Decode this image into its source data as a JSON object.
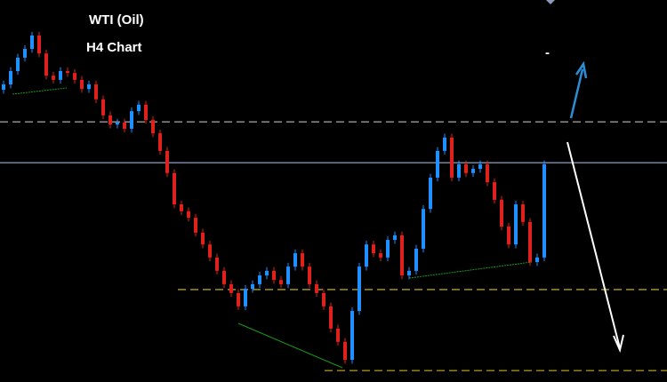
{
  "chart_data": {
    "type": "candlestick",
    "title": "WTI (Oil)",
    "subtitle": "H4 Chart",
    "annotation": "-",
    "ylim": [
      0,
      100
    ],
    "up_color": "#1e90ff",
    "down_color": "#e0201a",
    "open": [
      76.5,
      77.9,
      81.4,
      84.9,
      87.2,
      90.7,
      86.0,
      80.2,
      79.1,
      81.4,
      80.9,
      79.1,
      76.7,
      77.9,
      74.0,
      69.8,
      67.4,
      67.9,
      66.3,
      70.9,
      72.6,
      68.6,
      65.1,
      60.5,
      54.7,
      46.5,
      44.7,
      43.0,
      39.1,
      36.0,
      32.6,
      29.1,
      25.6,
      23.3,
      19.8,
      24.4,
      25.6,
      27.9,
      29.1,
      26.7,
      25.6,
      30.2,
      33.7,
      30.2,
      25.6,
      23.3,
      19.8,
      14.0,
      10.5,
      5.8,
      18.6,
      30.2,
      36.0,
      33.7,
      32.6,
      37.2,
      38.4,
      27.9,
      29.1,
      34.9,
      45.3,
      53.5,
      60.5,
      64.0,
      53.5,
      57.0,
      54.7,
      55.8,
      57.0,
      52.3,
      47.7,
      40.7,
      36.0,
      46.5,
      41.9,
      31.4,
      32.6
    ],
    "high": [
      78.9,
      82.4,
      85.9,
      88.2,
      91.7,
      91.7,
      87.0,
      81.2,
      82.4,
      82.4,
      81.9,
      80.1,
      78.9,
      78.9,
      75.0,
      70.8,
      68.9,
      68.9,
      71.9,
      73.6,
      73.6,
      69.6,
      66.1,
      61.5,
      55.7,
      47.5,
      45.7,
      44.0,
      40.1,
      37.0,
      33.6,
      30.1,
      26.6,
      24.3,
      25.4,
      26.6,
      28.9,
      30.1,
      30.1,
      27.7,
      31.2,
      34.7,
      34.7,
      31.2,
      26.6,
      24.3,
      20.8,
      15.0,
      11.5,
      19.6,
      31.2,
      37.0,
      37.0,
      34.7,
      38.2,
      39.4,
      39.4,
      30.1,
      35.9,
      46.3,
      54.5,
      61.5,
      65.0,
      65.0,
      58.0,
      58.0,
      56.8,
      58.0,
      58.0,
      53.3,
      48.7,
      41.7,
      47.5,
      47.5,
      42.9,
      33.6,
      58.0
    ],
    "low": [
      75.5,
      76.9,
      80.4,
      83.9,
      86.2,
      85.0,
      79.2,
      78.1,
      78.1,
      79.9,
      78.1,
      75.7,
      75.7,
      73.0,
      68.8,
      66.4,
      66.4,
      65.3,
      65.3,
      69.9,
      67.6,
      64.1,
      59.5,
      53.7,
      45.5,
      43.7,
      42.0,
      38.1,
      35.0,
      31.6,
      28.1,
      24.6,
      22.3,
      18.8,
      18.8,
      23.4,
      24.6,
      26.9,
      25.7,
      24.6,
      24.6,
      29.2,
      29.2,
      24.6,
      22.3,
      18.8,
      13.0,
      9.5,
      4.8,
      4.8,
      17.6,
      29.2,
      32.7,
      31.6,
      31.6,
      36.2,
      26.9,
      26.9,
      28.1,
      33.9,
      44.3,
      52.5,
      59.5,
      52.5,
      52.5,
      53.7,
      53.7,
      54.8,
      51.3,
      46.7,
      39.7,
      35.0,
      35.0,
      40.9,
      30.4,
      30.4,
      31.6
    ],
    "close": [
      77.9,
      81.4,
      84.9,
      87.2,
      90.7,
      86.0,
      80.2,
      79.1,
      81.4,
      80.9,
      79.1,
      76.7,
      77.9,
      74.0,
      69.8,
      67.4,
      67.9,
      66.3,
      70.9,
      72.6,
      68.6,
      65.1,
      60.5,
      54.7,
      46.5,
      44.7,
      43.0,
      39.1,
      36.0,
      32.6,
      29.1,
      25.6,
      23.3,
      19.8,
      24.4,
      25.6,
      27.9,
      29.1,
      26.7,
      25.6,
      30.2,
      33.7,
      30.2,
      25.6,
      23.3,
      19.8,
      14.0,
      10.5,
      5.8,
      18.6,
      30.2,
      36.0,
      33.7,
      32.6,
      37.2,
      38.4,
      27.9,
      29.1,
      34.9,
      45.3,
      53.5,
      60.5,
      64.0,
      53.5,
      57.0,
      54.7,
      55.8,
      57.0,
      52.3,
      47.7,
      40.7,
      36.0,
      46.5,
      41.9,
      31.4,
      32.6,
      57.0
    ],
    "levels": [
      {
        "value": 68.1,
        "color": "#9a9a9a",
        "dashed": true
      },
      {
        "value": 57.4,
        "color": "#7f93b0",
        "dashed": false
      },
      {
        "value": 24.2,
        "color": "#b5a01a",
        "dashed": true
      },
      {
        "value": 3.0,
        "color": "#b5a01a",
        "dashed": true
      }
    ]
  }
}
